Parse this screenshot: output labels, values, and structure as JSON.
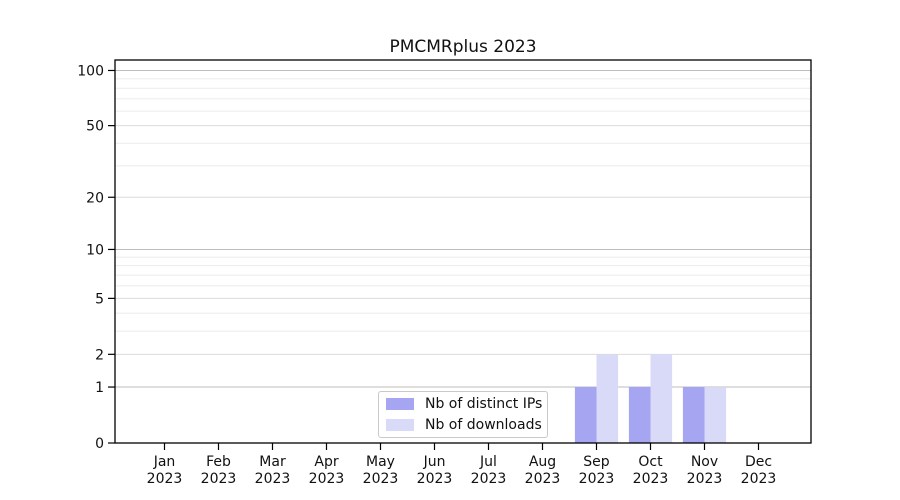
{
  "title": "PMCMRplus 2023",
  "legend": {
    "items": [
      {
        "label": "Nb of distinct IPs",
        "color": "#a5a5f2"
      },
      {
        "label": "Nb of downloads",
        "color": "#d9d9f8"
      }
    ]
  },
  "chart_data": {
    "type": "bar",
    "title": "PMCMRplus 2023",
    "categories": [
      "Jan 2023",
      "Feb 2023",
      "Mar 2023",
      "Apr 2023",
      "May 2023",
      "Jun 2023",
      "Jul 2023",
      "Aug 2023",
      "Sep 2023",
      "Oct 2023",
      "Nov 2023",
      "Dec 2023"
    ],
    "series": [
      {
        "name": "Nb of distinct IPs",
        "color": "#a5a5f2",
        "values": [
          0,
          0,
          0,
          0,
          0,
          0,
          0,
          0,
          1,
          1,
          1,
          0
        ]
      },
      {
        "name": "Nb of downloads",
        "color": "#d9d9f8",
        "values": [
          0,
          0,
          0,
          0,
          0,
          0,
          0,
          0,
          2,
          2,
          1,
          0
        ]
      }
    ],
    "xlabel": "",
    "ylabel": "",
    "yscale": "log1p",
    "ylim": [
      0,
      114
    ],
    "yticks": [
      0,
      1,
      2,
      5,
      10,
      20,
      50,
      100
    ],
    "yticks_minor": [
      3,
      4,
      6,
      7,
      8,
      9,
      30,
      40,
      60,
      70,
      80,
      90
    ],
    "grid": "horizontal",
    "legend_position": "lower center",
    "colors": {
      "grid_major_decade": "#bdbdbd",
      "grid_major_other": "#dcdcdc",
      "grid_minor": "#ebebeb",
      "spine": "#000000"
    }
  }
}
